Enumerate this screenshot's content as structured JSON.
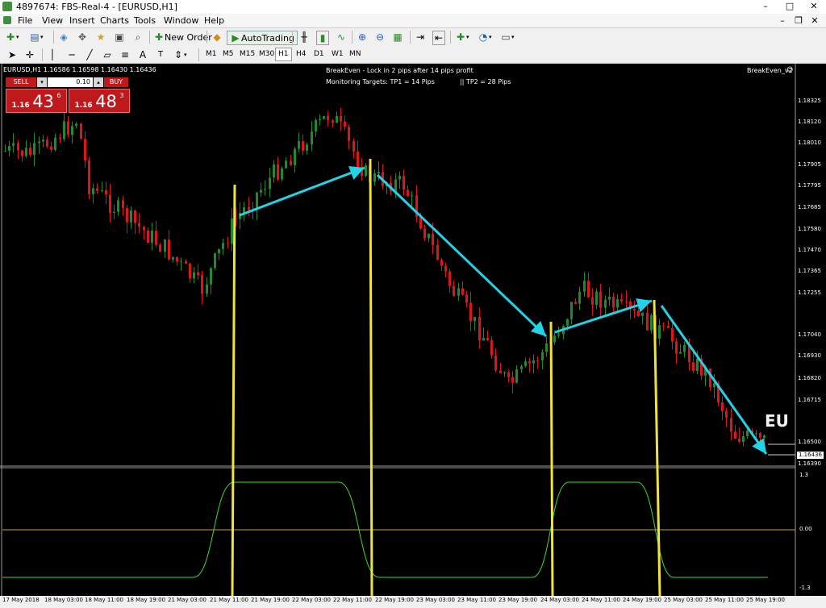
{
  "window": {
    "title": "4897674: FBS-Real-4 - [EURUSD,H1]",
    "controls": [
      "–",
      "□",
      "✕"
    ]
  },
  "menu": {
    "items": [
      "File",
      "View",
      "Insert",
      "Charts",
      "Tools",
      "Window",
      "Help"
    ],
    "mdi_controls": [
      "–",
      "❐",
      "✕"
    ]
  },
  "toolbar": {
    "new_order": "New Order",
    "auto_trading": "AutoTrading",
    "timeframes": [
      "M1",
      "M5",
      "M15",
      "M30",
      "H1",
      "H4",
      "D1",
      "W1",
      "MN"
    ],
    "active_timeframe": "H1"
  },
  "chart": {
    "header": "EURUSD,H1  1.16586 1.16598 1.16430 1.16436",
    "indicator_line1": "BreakEven - Lock in 2 pips after 14 pips profit",
    "indicator_line2a": "Monitoring Targets: TP1 = 14 Pips",
    "indicator_line2b": "|| TP2 = 28 Pips",
    "ea_label": "BreakEven_v2",
    "symbol_watermark": "EU",
    "price_labels": [
      "1.18325",
      "1.18120",
      "1.18010",
      "1.17905",
      "1.17795",
      "1.17685",
      "1.17580",
      "1.17470",
      "1.17365",
      "1.17255",
      "1.17040",
      "1.16930",
      "1.16820",
      "1.16715",
      "1.16500",
      "1.16390"
    ],
    "current_price": "1.16436",
    "osc_labels": [
      "1.3",
      "0.00",
      "-1.3"
    ],
    "time_labels": [
      "17 May 2018",
      "18 May 03:00",
      "18 May 11:00",
      "18 May 19:00",
      "21 May 03:00",
      "21 May 11:00",
      "21 May 19:00",
      "22 May 03:00",
      "22 May 11:00",
      "22 May 19:00",
      "23 May 03:00",
      "23 May 11:00",
      "23 May 19:00",
      "24 May 03:00",
      "24 May 11:00",
      "24 May 19:00",
      "25 May 03:00",
      "25 May 11:00",
      "25 May 19:00"
    ]
  },
  "trade_panel": {
    "sell_label": "SELL",
    "buy_label": "BUY",
    "lot": "0.10",
    "bid_prefix": "1.16",
    "bid_main": "43",
    "bid_sup": "6",
    "ask_prefix": "1.16",
    "ask_main": "48",
    "ask_sup": "3"
  },
  "colors": {
    "bull": "#1f8a2e",
    "bear": "#e0141b",
    "arrow": "#22d3e8",
    "signal": "#f2e33a",
    "osc": "#3bdc2a",
    "zero": "#c9a42a"
  }
}
